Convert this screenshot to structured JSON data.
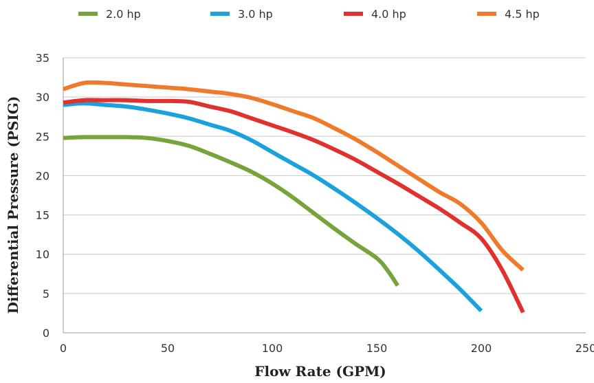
{
  "chart_data": {
    "type": "line",
    "title": "",
    "xlabel": "Flow Rate  (GPM)",
    "ylabel": "Differential Pressure (PSIG)",
    "xlim": [
      0,
      250
    ],
    "ylim": [
      0,
      35
    ],
    "xticks": [
      0,
      50,
      100,
      150,
      200,
      250
    ],
    "yticks": [
      0,
      5,
      10,
      15,
      20,
      25,
      30,
      35
    ],
    "grid": "horizontal",
    "legend_position": "top",
    "series": [
      {
        "name": "2.0 hp",
        "color": "#77a33b",
        "x": [
          0,
          10,
          20,
          30,
          40,
          50,
          60,
          70,
          80,
          90,
          100,
          110,
          120,
          130,
          140,
          150,
          155,
          160
        ],
        "y": [
          24.8,
          24.9,
          24.9,
          24.9,
          24.8,
          24.4,
          23.8,
          22.8,
          21.7,
          20.5,
          19.0,
          17.2,
          15.2,
          13.2,
          11.3,
          9.5,
          8.0,
          6.0
        ]
      },
      {
        "name": "3.0 hp",
        "color": "#1ba1dc",
        "x": [
          0,
          10,
          20,
          30,
          40,
          50,
          60,
          70,
          80,
          90,
          100,
          110,
          120,
          130,
          140,
          150,
          160,
          170,
          180,
          190,
          200
        ],
        "y": [
          29.0,
          29.2,
          29.0,
          28.8,
          28.4,
          27.9,
          27.3,
          26.5,
          25.7,
          24.5,
          23.0,
          21.5,
          20.0,
          18.3,
          16.5,
          14.6,
          12.6,
          10.4,
          8.0,
          5.5,
          2.8
        ]
      },
      {
        "name": "4.0 hp",
        "color": "#e0312f",
        "x": [
          0,
          10,
          20,
          30,
          40,
          50,
          60,
          70,
          80,
          90,
          100,
          110,
          120,
          130,
          140,
          150,
          160,
          170,
          180,
          190,
          200,
          210,
          220
        ],
        "y": [
          29.3,
          29.6,
          29.6,
          29.6,
          29.5,
          29.5,
          29.4,
          28.8,
          28.2,
          27.3,
          26.4,
          25.5,
          24.5,
          23.3,
          22.0,
          20.5,
          19.0,
          17.4,
          15.8,
          14.0,
          12.0,
          8.0,
          2.6
        ]
      },
      {
        "name": "4.5 hp",
        "color": "#f07a2b",
        "x": [
          0,
          10,
          20,
          30,
          40,
          50,
          60,
          70,
          80,
          90,
          100,
          110,
          120,
          130,
          140,
          150,
          160,
          170,
          180,
          190,
          200,
          210,
          220
        ],
        "y": [
          31.0,
          31.8,
          31.8,
          31.6,
          31.4,
          31.2,
          31.0,
          30.7,
          30.4,
          29.9,
          29.1,
          28.2,
          27.3,
          26.0,
          24.6,
          23.0,
          21.3,
          19.6,
          17.9,
          16.4,
          14.0,
          10.5,
          8.0
        ]
      }
    ]
  }
}
